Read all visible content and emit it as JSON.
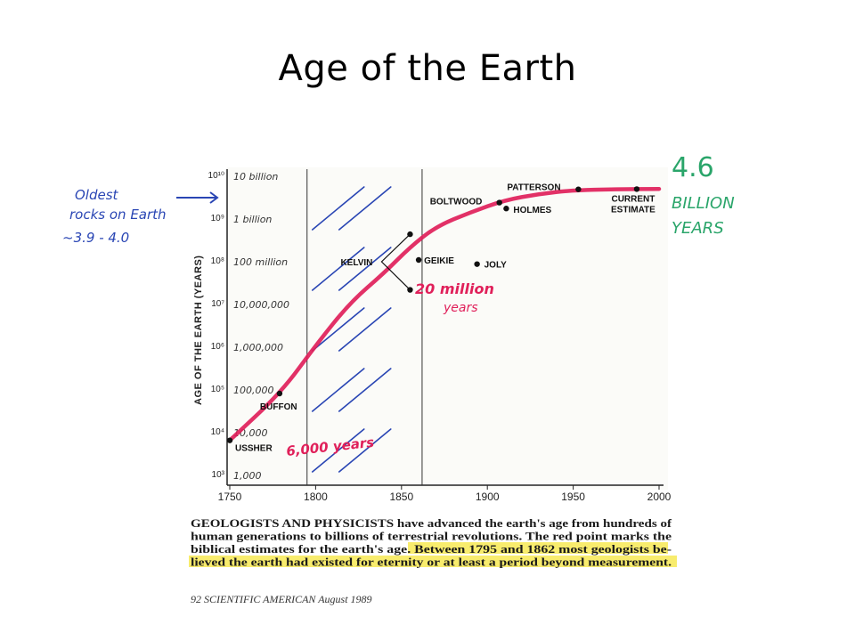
{
  "slide": {
    "title": "Age of the Earth"
  },
  "chart_data": {
    "type": "line",
    "title": "",
    "ylabel": "AGE OF THE EARTH (YEARS)",
    "xlabel": "",
    "y_scale": "log",
    "xlim": [
      1750,
      2000
    ],
    "ylim": [
      1000,
      10000000000
    ],
    "x_ticks": [
      "1750",
      "1800",
      "1850",
      "1900",
      "1950",
      "2000"
    ],
    "y_ticks": [
      {
        "value": 10000000000,
        "label": "10¹⁰",
        "note": "10 billion"
      },
      {
        "value": 1000000000,
        "label": "10⁹",
        "note": "1 billion"
      },
      {
        "value": 100000000,
        "label": "10⁸",
        "note": "100 million"
      },
      {
        "value": 10000000,
        "label": "10⁷",
        "note": "10,000,000"
      },
      {
        "value": 1000000,
        "label": "10⁶",
        "note": "1,000,000"
      },
      {
        "value": 100000,
        "label": "10⁵",
        "note": "100,000"
      },
      {
        "value": 10000,
        "label": "10⁴",
        "note": "10,000"
      },
      {
        "value": 1000,
        "label": "10³",
        "note": "1,000"
      }
    ],
    "shaded_period": [
      1795,
      1862
    ],
    "series": [
      {
        "color": "#e0205a",
        "x": [
          1750,
          1780,
          1800,
          1820,
          1840,
          1855,
          1870,
          1890,
          1910,
          1930,
          1950,
          1975,
          2000
        ],
        "y": [
          6000,
          80000,
          1000000,
          10000000,
          50000000,
          200000000,
          600000000,
          1300000000,
          2500000000,
          3500000000,
          4300000000,
          4500000000,
          4600000000
        ]
      }
    ],
    "estimates": [
      {
        "label": "USSHER",
        "year": 1750,
        "age": 6000
      },
      {
        "label": "BUFFON",
        "year": 1779,
        "age": 75000
      },
      {
        "label": "KELVIN",
        "year": 1855,
        "age": 400000000
      },
      {
        "label": "",
        "year": 1855,
        "age": 20000000
      },
      {
        "label": "GEIKIE",
        "year": 1860,
        "age": 100000000
      },
      {
        "label": "JOLY",
        "year": 1894,
        "age": 80000000
      },
      {
        "label": "BOLTWOOD",
        "year": 1907,
        "age": 2200000000
      },
      {
        "label": "HOLMES",
        "year": 1911,
        "age": 1600000000
      },
      {
        "label": "PATTERSON",
        "year": 1953,
        "age": 4500000000
      },
      {
        "label": "CURRENT\nESTIMATE",
        "year": 1987,
        "age": 4550000000
      }
    ],
    "annotations": {
      "oldest_rocks": [
        "Oldest",
        "rocks on Earth",
        "~3.9 - 4.0"
      ],
      "billion_years": [
        "4.6",
        "BILLION",
        "YEARS"
      ],
      "twenty_million": [
        "20 million",
        "years"
      ],
      "six_thousand": "6,000 years"
    },
    "caption": [
      "GEOLOGISTS AND PHYSICISTS have advanced the earth's age from hundreds of",
      "human generations to billions of terrestrial revolutions. The red point marks the",
      "biblical estimates for the earth's age. Between 1795 and 1862 most geologists be-",
      "lieved the earth had existed for eternity or at least a period beyond measurement."
    ],
    "footer": "92     SCIENTIFIC AMERICAN  August 1989",
    "colors": {
      "curve": "#e0205a",
      "hatch": "#2a46b4",
      "annotation_blue": "#2a46b4",
      "annotation_green": "#2aa56a",
      "highlight": "#f5e63c"
    }
  }
}
